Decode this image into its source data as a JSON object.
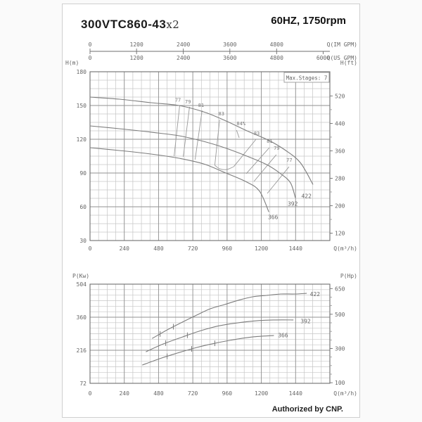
{
  "header": {
    "model_main": "300VTC860-43",
    "model_suffix": "x2",
    "frequency_speed": "60HZ, 1750rpm"
  },
  "footer": {
    "authorized": "Authorized by CNP."
  },
  "chart_data": [
    {
      "type": "line",
      "name": "head_vs_flow",
      "note": "Max.Stages: 7",
      "x_axis": {
        "label": "Q(m³/h)",
        "range": [
          0,
          1680
        ],
        "ticks": [
          0,
          240,
          480,
          720,
          960,
          1200,
          1440
        ],
        "minor_step": 60
      },
      "y_axis": {
        "label": "H(m)",
        "range": [
          30,
          180
        ],
        "ticks": [
          30,
          60,
          90,
          120,
          150,
          180
        ],
        "minor_step": 7.5
      },
      "y2_axis": {
        "label": "H(ft)",
        "ticks": [
          120,
          200,
          280,
          360,
          440,
          520
        ],
        "minor_step": 40,
        "to_primary": 0.3048
      },
      "top_axes": [
        {
          "label": "Q(IM GPM)",
          "ticks": [
            0,
            1200,
            2400,
            3600,
            4800
          ],
          "fractions": [
            0,
            0.194,
            0.389,
            0.583,
            0.778
          ]
        },
        {
          "label": "Q(US GPM)",
          "ticks": [
            0,
            1200,
            2400,
            3600,
            4800,
            6000
          ],
          "fractions": [
            0,
            0.194,
            0.389,
            0.583,
            0.778,
            0.972
          ]
        }
      ],
      "series": [
        {
          "name": "422",
          "points": [
            [
              0,
              157.5
            ],
            [
              206,
              155.6
            ],
            [
              427,
              152.5
            ],
            [
              623,
              150.0
            ],
            [
              795,
              144.4
            ],
            [
              942,
              136.9
            ],
            [
              1099,
              127.5
            ],
            [
              1247,
              119.4
            ],
            [
              1364,
              110.6
            ],
            [
              1472,
              99.4
            ],
            [
              1561,
              80.0
            ]
          ],
          "label_at": [
            1516,
            69.5
          ]
        },
        {
          "name": "392",
          "points": [
            [
              0,
              131.9
            ],
            [
              206,
              129.4
            ],
            [
              427,
              126.3
            ],
            [
              623,
              123.1
            ],
            [
              795,
              118.1
            ],
            [
              942,
              112.5
            ],
            [
              1099,
              105.0
            ],
            [
              1237,
              97.5
            ],
            [
              1335,
              89.4
            ],
            [
              1404,
              81.3
            ],
            [
              1438,
              68.1
            ]
          ],
          "label_at": [
            1420,
            62.5
          ]
        },
        {
          "name": "366",
          "points": [
            [
              0,
              112.5
            ],
            [
              206,
              110.0
            ],
            [
              427,
              106.9
            ],
            [
              623,
              103.1
            ],
            [
              795,
              98.1
            ],
            [
              952,
              90.0
            ],
            [
              1099,
              81.9
            ],
            [
              1188,
              73.8
            ],
            [
              1252,
              55.6
            ]
          ],
          "label_at": [
            1282,
            50.5
          ]
        }
      ],
      "efficiency_lines": [
        {
          "label": "77",
          "from": [
            628,
            150.0
          ],
          "to": [
            589,
            105.0
          ],
          "label_at": [
            616,
            153.5
          ]
        },
        {
          "label": "79",
          "from": [
            697,
            148.8
          ],
          "to": [
            653,
            104.4
          ],
          "label_at": [
            686,
            151.8
          ]
        },
        {
          "label": "81",
          "from": [
            785,
            145.6
          ],
          "to": [
            736,
            101.9
          ],
          "label_at": [
            778,
            148.8
          ]
        },
        {
          "label": "83",
          "from": [
            908,
            137.5
          ],
          "to": [
            874,
            96.9
          ],
          "label_at": [
            920,
            141.2
          ]
        },
        {
          "label": "83",
          "from": [
            1163,
            120.0
          ],
          "to": [
            1006,
            95.6
          ],
          "label_at": [
            1168,
            123.8
          ]
        },
        {
          "label": "81",
          "from": [
            1256,
            112.5
          ],
          "to": [
            1094,
            89.4
          ],
          "label_at": [
            1258,
            116.8
          ]
        },
        {
          "label": "79",
          "from": [
            1305,
            106.3
          ],
          "to": [
            1148,
            82.5
          ],
          "label_at": [
            1307,
            110.5
          ]
        },
        {
          "label": "77",
          "from": [
            1394,
            95.6
          ],
          "to": [
            1242,
            71.9
          ],
          "label_at": [
            1396,
            100.0
          ]
        }
      ],
      "efficiency_loop": [
        [
          874,
          96.9
        ],
        [
          908,
          93.8
        ],
        [
          957,
          93.1
        ],
        [
          1006,
          95.6
        ]
      ],
      "bep": {
        "label": "84%",
        "label_at": [
          1058,
          132.5
        ],
        "tick": [
          [
            1026,
            128.1
          ],
          [
            1045,
            121.3
          ]
        ]
      }
    },
    {
      "type": "line",
      "name": "power_vs_flow",
      "x_axis": {
        "label": "Q(m³/h)",
        "range": [
          0,
          1680
        ],
        "ticks": [
          0,
          240,
          480,
          720,
          960,
          1200,
          1440
        ],
        "minor_step": 60
      },
      "y_axis": {
        "label": "P(Kw)",
        "range": [
          72,
          504
        ],
        "ticks": [
          72,
          216,
          360,
          504
        ],
        "minor_step": 24
      },
      "y2_axis": {
        "label": "P(Hp)",
        "ticks": [
          100,
          300,
          500,
          650
        ],
        "minor_step": 50,
        "to_primary": 0.7457
      },
      "series": [
        {
          "name": "422",
          "points": [
            [
              437,
              268
            ],
            [
              550,
              308
            ],
            [
              648,
              339
            ],
            [
              746,
              369
            ],
            [
              844,
              397
            ],
            [
              942,
              415
            ],
            [
              1041,
              434
            ],
            [
              1139,
              449
            ],
            [
              1237,
              455
            ],
            [
              1335,
              461
            ],
            [
              1433,
              461
            ],
            [
              1516,
              464
            ]
          ],
          "label_at": [
            1576,
            459
          ],
          "tick_q": [
            491,
            584
          ]
        },
        {
          "name": "392",
          "points": [
            [
              393,
              210
            ],
            [
              515,
              244
            ],
            [
              648,
              274
            ],
            [
              780,
              302
            ],
            [
              908,
              323
            ],
            [
              1041,
              336
            ],
            [
              1173,
              345
            ],
            [
              1301,
              348
            ],
            [
              1423,
              348
            ]
          ],
          "label_at": [
            1510,
            342
          ],
          "tick_q": [
            530,
            682
          ]
        },
        {
          "name": "366",
          "points": [
            [
              368,
              152
            ],
            [
              486,
              179
            ],
            [
              613,
              204
            ],
            [
              746,
              228
            ],
            [
              878,
              247
            ],
            [
              1006,
              262
            ],
            [
              1139,
              274
            ],
            [
              1286,
              280
            ]
          ],
          "label_at": [
            1352,
            281
          ],
          "tick_q": [
            540,
            712,
            874
          ]
        }
      ]
    }
  ]
}
